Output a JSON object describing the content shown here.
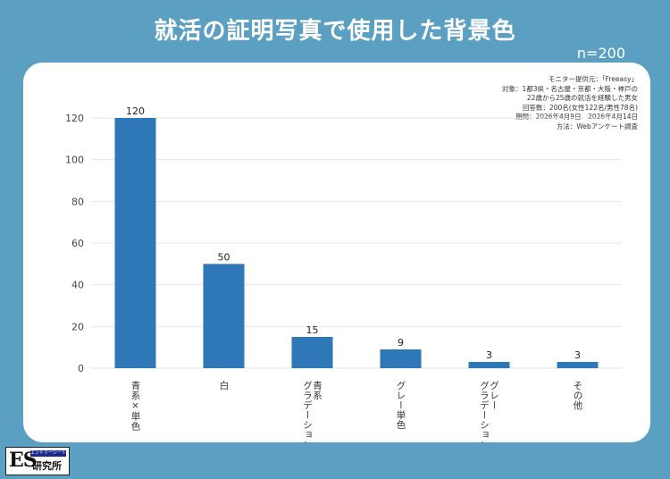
{
  "header": {
    "title": "就活の証明写真で使用した背景色",
    "sample": "n=200"
  },
  "notes": [
    "モニター提供元：「Freeasy」",
    "対象：1都3県・名古屋・京都・大阪・神戸の",
    "22歳から25歳の就活を経験した男女",
    "回答数：200名(女性122名/男性78名)",
    "期間：2026年4月9日　2026年4月14日",
    "方法：Webアンケート調査"
  ],
  "logo": {
    "mark": "ES",
    "tagline": "エントリーシート",
    "name": "研究所"
  },
  "colors": {
    "background": "#5b9fc3",
    "bar": "#2e78b7",
    "card": "#ffffff"
  },
  "chart_data": {
    "type": "bar",
    "categories": [
      "青系×単色",
      "白",
      "青系グラデーション",
      "グレー単色",
      "グレーグラデーション",
      "その他"
    ],
    "category_lines": [
      [
        "青系×単色"
      ],
      [
        "白"
      ],
      [
        "青系",
        "グラデーション"
      ],
      [
        "グレー単色"
      ],
      [
        "グレー",
        "グラデーション"
      ],
      [
        "その他"
      ]
    ],
    "values": [
      120,
      50,
      15,
      9,
      3,
      3
    ],
    "ylim": [
      0,
      120
    ],
    "yticks": [
      0,
      20,
      40,
      60,
      80,
      100,
      120
    ],
    "grid": true,
    "data_labels": true
  }
}
